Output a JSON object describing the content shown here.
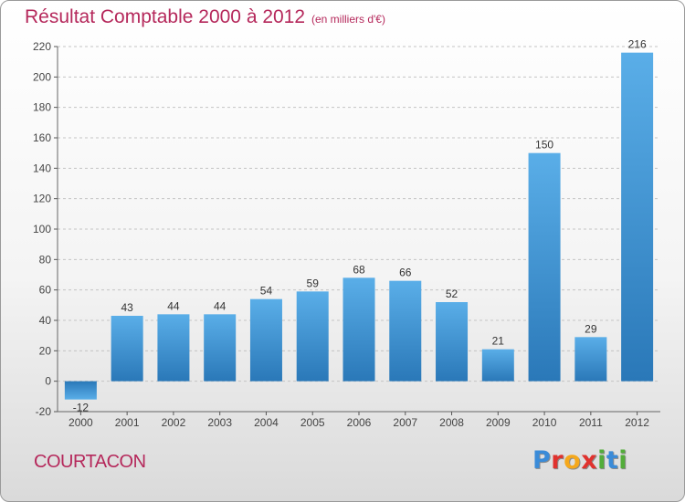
{
  "header": {
    "title": "Résultat Comptable 2000 à 2012",
    "subtitle": "(en milliers d'€)"
  },
  "footer": {
    "commune": "COURTACON",
    "logo": "Proxiti"
  },
  "logo_colors": [
    "#3a8bd8",
    "#e0322e",
    "#f5a81c",
    "#e0322e",
    "#53ad3a",
    "#3a8bd8",
    "#53ad3a"
  ],
  "chart_data": {
    "type": "bar",
    "title": "Résultat Comptable 2000 à 2012",
    "subtitle": "(en milliers d'€)",
    "xlabel": "",
    "ylabel": "",
    "categories": [
      "2000",
      "2001",
      "2002",
      "2003",
      "2004",
      "2005",
      "2006",
      "2007",
      "2008",
      "2009",
      "2010",
      "2011",
      "2012"
    ],
    "values": [
      -12,
      43,
      44,
      44,
      54,
      59,
      68,
      66,
      52,
      21,
      150,
      29,
      216
    ],
    "ylim": [
      -20,
      220
    ],
    "yticks": [
      -20,
      0,
      20,
      40,
      60,
      80,
      100,
      120,
      140,
      160,
      180,
      200,
      220
    ],
    "grid": "horizontal dashed",
    "legend": "none",
    "bar_color": "#3f97db"
  }
}
